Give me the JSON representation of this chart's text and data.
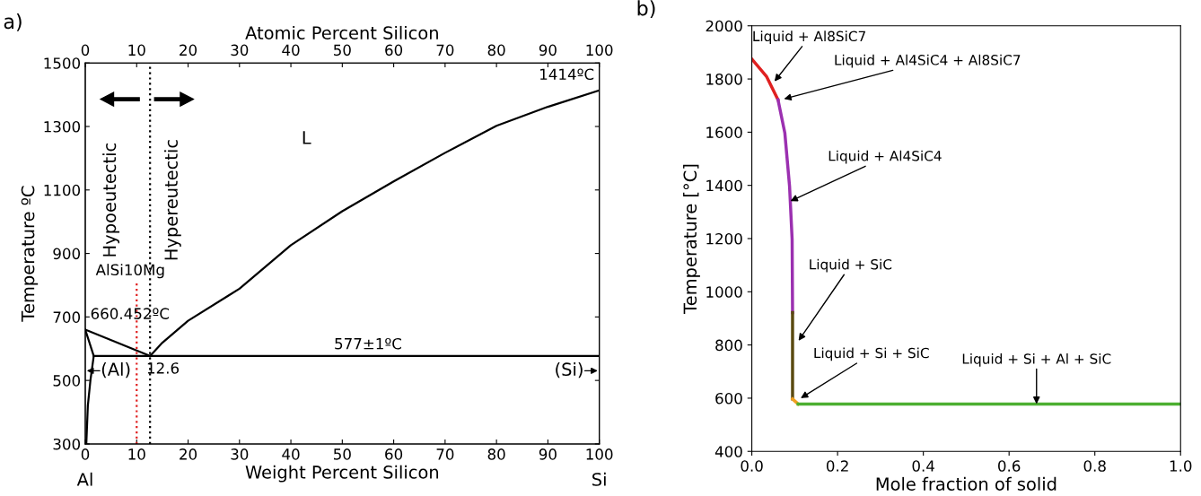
{
  "chart_data": [
    {
      "type": "line",
      "xlabel": "Weight Percent Silicon",
      "x2label": "Atomic Percent Silicon",
      "ylabel": "Temperature ºC",
      "xlim": [
        0,
        100
      ],
      "xticks": [
        0,
        10,
        20,
        30,
        40,
        50,
        60,
        70,
        80,
        90,
        100
      ],
      "x2lim": [
        0,
        100
      ],
      "x2ticks": [
        0,
        10,
        20,
        30,
        40,
        50,
        60,
        70,
        80,
        90,
        100
      ],
      "ylim": [
        300,
        1500
      ],
      "yticks": [
        300,
        500,
        700,
        900,
        1100,
        1300,
        1500
      ],
      "series": [
        {
          "color": "#000000",
          "line_style": "solid",
          "x": [
            0,
            12.6
          ],
          "values": [
            660,
            577
          ]
        },
        {
          "color": "#000000",
          "line_style": "solid",
          "x": [
            12.6,
            15,
            20,
            30,
            40,
            50,
            60,
            70,
            80,
            90,
            100
          ],
          "values": [
            577,
            619,
            688,
            789,
            926,
            1033,
            1127,
            1217,
            1302,
            1362,
            1414
          ]
        },
        {
          "color": "#000000",
          "line_style": "solid",
          "x": [
            1.65,
            100
          ],
          "values": [
            577,
            577
          ]
        },
        {
          "color": "#000000",
          "line_style": "solid",
          "x": [
            0,
            1.65,
            1.0,
            0.5,
            0.2
          ],
          "values": [
            660,
            577,
            500,
            420,
            300
          ]
        },
        {
          "color": "#e02020",
          "line_style": "dotted",
          "x": [
            10,
            10
          ],
          "values": [
            300,
            810
          ]
        },
        {
          "color": "#000000",
          "line_style": "dotted",
          "x": [
            12.6,
            12.6
          ],
          "values": [
            300,
            1500
          ]
        }
      ],
      "annotations": [
        "a)",
        "Hypoeutectic",
        "Hypereutectic",
        "L",
        "Al",
        "Si",
        "(Al)",
        "(Si)",
        {
          "text": "1414ºC",
          "x": 100,
          "y": 1414
        },
        {
          "text": "660.452ºC",
          "x": 0,
          "y": 660
        },
        {
          "text": "577±1ºC",
          "x": 55,
          "y": 577
        },
        {
          "text": "12.6",
          "x": 12.6,
          "y": 577
        },
        {
          "text": "AlSi10Mg",
          "x": 10,
          "y": 810
        }
      ]
    },
    {
      "type": "line",
      "xlabel": "Mole fraction of solid",
      "ylabel": "Temperature [°C]",
      "xlim": [
        0,
        1
      ],
      "xticks": [
        {
          "value": 0,
          "label": "0.0"
        },
        {
          "value": 0.2,
          "label": "0.2"
        },
        {
          "value": 0.4,
          "label": "0.4"
        },
        {
          "value": 0.6,
          "label": "0.6"
        },
        {
          "value": 0.8,
          "label": "0.8"
        },
        {
          "value": 1,
          "label": "1.0"
        }
      ],
      "ylim": [
        400,
        2000
      ],
      "yticks": [
        400,
        600,
        800,
        1000,
        1200,
        1400,
        1600,
        1800,
        2000
      ],
      "series": [
        {
          "color": "#e02020",
          "line_style": "solid",
          "x": [
            0,
            0.034,
            0.061
          ],
          "values": [
            1875,
            1810,
            1722
          ]
        },
        {
          "color": "#9b30b0",
          "line_style": "solid",
          "x": [
            0.061,
            0.077,
            0.088,
            0.094,
            0.095
          ],
          "values": [
            1722,
            1597,
            1397,
            1197,
            922
          ]
        },
        {
          "color": "#5a4a10",
          "line_style": "solid",
          "x": [
            0.095,
            0.095
          ],
          "values": [
            922,
            597
          ]
        },
        {
          "color": "#f0a020",
          "line_style": "solid",
          "x": [
            0.095,
            0.108
          ],
          "values": [
            597,
            578
          ]
        },
        {
          "color": "#4caf30",
          "line_style": "solid",
          "x": [
            0.108,
            1.0
          ],
          "values": [
            578,
            578
          ]
        }
      ],
      "annotations": [
        "b)",
        {
          "text": "Liquid + Al8SiC7",
          "x": 0.053,
          "y": 1791
        },
        {
          "text": "Liquid + Al4SiC4 + Al8SiC7",
          "x": 0.075,
          "y": 1725
        },
        {
          "text": "Liquid + Al4SiC4",
          "x": 0.09,
          "y": 1341
        },
        {
          "text": "Liquid + SiC",
          "x": 0.109,
          "y": 816
        },
        {
          "text": "Liquid + Si + SiC",
          "x": 0.114,
          "y": 600
        },
        {
          "text": "Liquid + Si + Al + SiC",
          "x": 0.664,
          "y": 578
        }
      ]
    }
  ]
}
